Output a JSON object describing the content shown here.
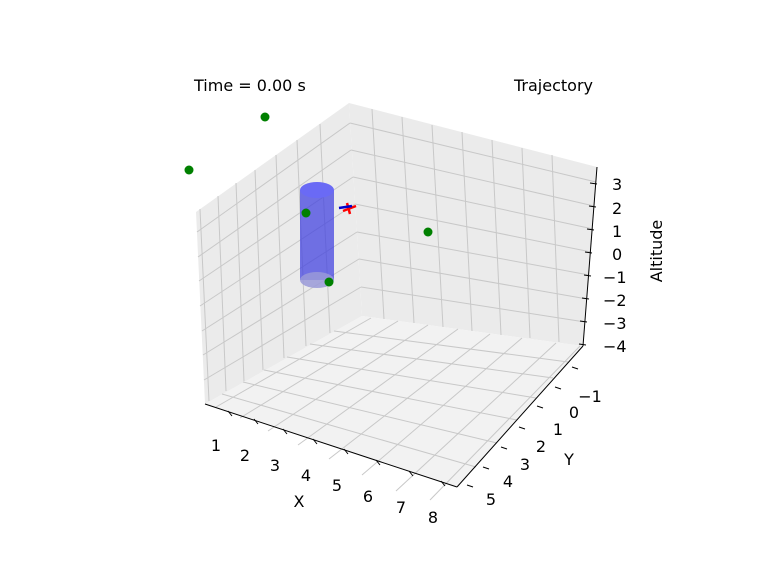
{
  "chart_data": {
    "type": "scatter",
    "projection": "3d",
    "annotations": {
      "time": "Time = 0.00 s",
      "trajectory": "Trajectory"
    },
    "xlabel": "X",
    "ylabel": "Y",
    "zlabel": "Altitude",
    "xticks": [
      "1",
      "2",
      "3",
      "4",
      "5",
      "6",
      "7",
      "8"
    ],
    "yticks": [
      "−1",
      "0",
      "1",
      "2",
      "3",
      "4",
      "5"
    ],
    "zticks": [
      "3",
      "2",
      "1",
      "0",
      "−1",
      "−2",
      "−3",
      "−4"
    ],
    "grid": true,
    "colors": {
      "waypoint": "#008000",
      "obstacle": "#3a3ae0",
      "vehicle_x": "#ff0000",
      "vehicle_y": "#0000cc",
      "pane": "#f2f2f2",
      "grid": "#c8c8c8"
    }
  }
}
